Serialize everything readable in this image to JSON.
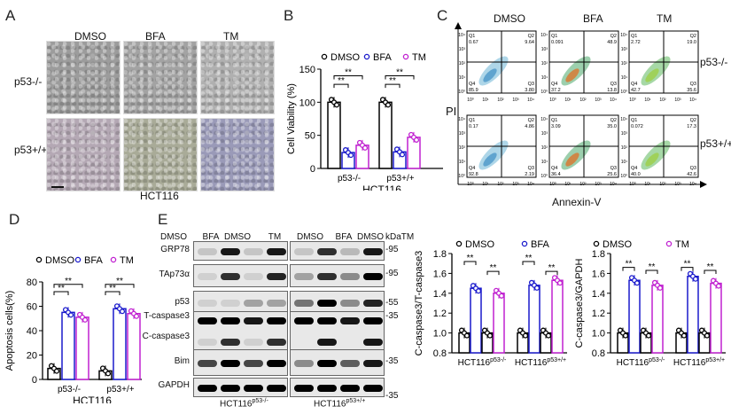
{
  "panels": {
    "A": {
      "letter": "A",
      "columns": [
        "DMSO",
        "BFA",
        "TM"
      ],
      "rows": [
        "p53-/-",
        "p53+/+"
      ],
      "caption": "HCT116",
      "tile_colors": [
        [
          "#9c9c9c",
          "#a3a3a3",
          "#b0b0b0"
        ],
        [
          "#b4a8b4",
          "#a9ab98",
          "#9a9ab8"
        ]
      ]
    },
    "B": {
      "letter": "B"
    },
    "C": {
      "letter": "C",
      "columns": [
        "DMSO",
        "BFA",
        "TM"
      ],
      "rows": [
        "p53-/-",
        "p53+/+"
      ],
      "y_axis": "PI",
      "x_axis": "Annexin-V",
      "ticks": [
        "10⁰",
        "10¹",
        "10²",
        "10³",
        "10⁴"
      ],
      "plots": [
        [
          {
            "q1": "0.67",
            "q2": "9.64",
            "q3": "3.80",
            "q4": "85.9"
          },
          {
            "q1": "0.091",
            "q2": "48.9",
            "q3": "13.8",
            "q4": "37.2"
          },
          {
            "q1": "2.72",
            "q2": "19.0",
            "q3": "35.6",
            "q4": "42.7"
          }
        ],
        [
          {
            "q1": "0.17",
            "q2": "4.86",
            "q3": "2.19",
            "q4": "92.8"
          },
          {
            "q1": "3.09",
            "q2": "35.0",
            "q3": "25.6",
            "q4": "36.4"
          },
          {
            "q1": "0.072",
            "q2": "17.3",
            "q3": "42.6",
            "q4": "40.0"
          }
        ]
      ],
      "quad_labels": [
        "Q1",
        "Q2",
        "Q3",
        "Q4"
      ]
    },
    "D": {
      "letter": "D"
    },
    "E": {
      "letter": "E",
      "lanes": [
        "DMSO",
        "BFA",
        "DMSO",
        "TM",
        "DMSO",
        "BFA",
        "DMSO",
        "TM"
      ],
      "kda_label": "kDa",
      "proteins": [
        {
          "name": "GRP78",
          "kda": "95"
        },
        {
          "name": "TAp73α",
          "kda": "95"
        },
        {
          "name": "p53",
          "kda": "55"
        },
        {
          "name": "T-caspase3",
          "kda": "35"
        },
        {
          "name": "C-caspase3",
          "kda": ""
        },
        {
          "name": "Bim",
          "kda": "35"
        },
        {
          "name": "GAPDH",
          "kda": "35"
        }
      ],
      "groups": [
        {
          "base": "HCT116",
          "sup": "p53-/-"
        },
        {
          "base": "HCT116",
          "sup": "p53+/+"
        }
      ]
    }
  },
  "chart_data": [
    {
      "id": "B",
      "type": "bar",
      "title": "",
      "xlabel": "HCT116",
      "ylabel": "Cell Viability (%)",
      "ylim": [
        0,
        150
      ],
      "yticks": [
        0,
        50,
        100,
        150
      ],
      "categories": [
        "p53-/-",
        "p53+/+"
      ],
      "series": [
        {
          "name": "DMSO",
          "color": "#000000",
          "values": [
            100,
            100
          ]
        },
        {
          "name": "BFA",
          "color": "#1a1acc",
          "values": [
            24,
            25
          ]
        },
        {
          "name": "TM",
          "color": "#c020d0",
          "values": [
            35,
            47
          ]
        }
      ],
      "significance": "**",
      "legend_position": "top"
    },
    {
      "id": "D",
      "type": "bar",
      "title": "",
      "xlabel": "HCT116",
      "ylabel": "Apoptosis cells(%)",
      "ylim": [
        0,
        80
      ],
      "yticks": [
        0,
        20,
        40,
        60,
        80
      ],
      "categories": [
        "p53-/-",
        "p53+/+"
      ],
      "series": [
        {
          "name": "DMSO",
          "color": "#000000",
          "values": [
            9,
            7
          ]
        },
        {
          "name": "BFA",
          "color": "#1a1acc",
          "values": [
            55,
            58
          ]
        },
        {
          "name": "TM",
          "color": "#c020d0",
          "values": [
            51,
            54
          ]
        }
      ],
      "significance": "**",
      "legend_position": "top"
    },
    {
      "id": "E-ratio-T",
      "type": "bar",
      "title": "",
      "xlabel": "",
      "ylabel": "C-caspase3/T-caspase3",
      "ylim": [
        0.8,
        1.8
      ],
      "yticks": [
        0.8,
        1.0,
        1.2,
        1.4,
        1.6,
        1.8
      ],
      "categories": [
        "HCT116 p53-/-",
        "HCT116 p53+/+"
      ],
      "bar_order": [
        "DMSO",
        "BFA",
        "DMSO",
        "TM"
      ],
      "series": [
        {
          "name": "DMSO",
          "color": "#000000",
          "values": [
            1.0,
            1.0
          ]
        },
        {
          "name": "BFA",
          "color": "#1a1acc",
          "values": [
            1.45,
            1.48
          ]
        },
        {
          "name": "DMSO",
          "color": "#000000",
          "values": [
            1.0,
            1.0
          ]
        },
        {
          "name": "TM",
          "color": "#c020d0",
          "values": [
            1.4,
            1.53
          ]
        }
      ],
      "legend": [
        "DMSO",
        "BFA"
      ],
      "significance": "**"
    },
    {
      "id": "E-ratio-GAPDH",
      "type": "bar",
      "title": "",
      "xlabel": "",
      "ylabel": "C-caspase3/GAPDH",
      "ylim": [
        0.8,
        1.8
      ],
      "yticks": [
        0.8,
        1.0,
        1.2,
        1.4,
        1.6,
        1.8
      ],
      "categories": [
        "HCT116 p53-/-",
        "HCT116 p53+/+"
      ],
      "bar_order": [
        "DMSO",
        "BFA",
        "DMSO",
        "TM"
      ],
      "series": [
        {
          "name": "DMSO",
          "color": "#000000",
          "values": [
            1.0,
            1.0
          ]
        },
        {
          "name": "BFA",
          "color": "#1a1acc",
          "values": [
            1.53,
            1.57
          ]
        },
        {
          "name": "DMSO",
          "color": "#000000",
          "values": [
            1.0,
            1.0
          ]
        },
        {
          "name": "TM",
          "color": "#c020d0",
          "values": [
            1.48,
            1.5
          ]
        }
      ],
      "legend": [
        "DMSO",
        "TM"
      ],
      "significance": "**"
    }
  ]
}
